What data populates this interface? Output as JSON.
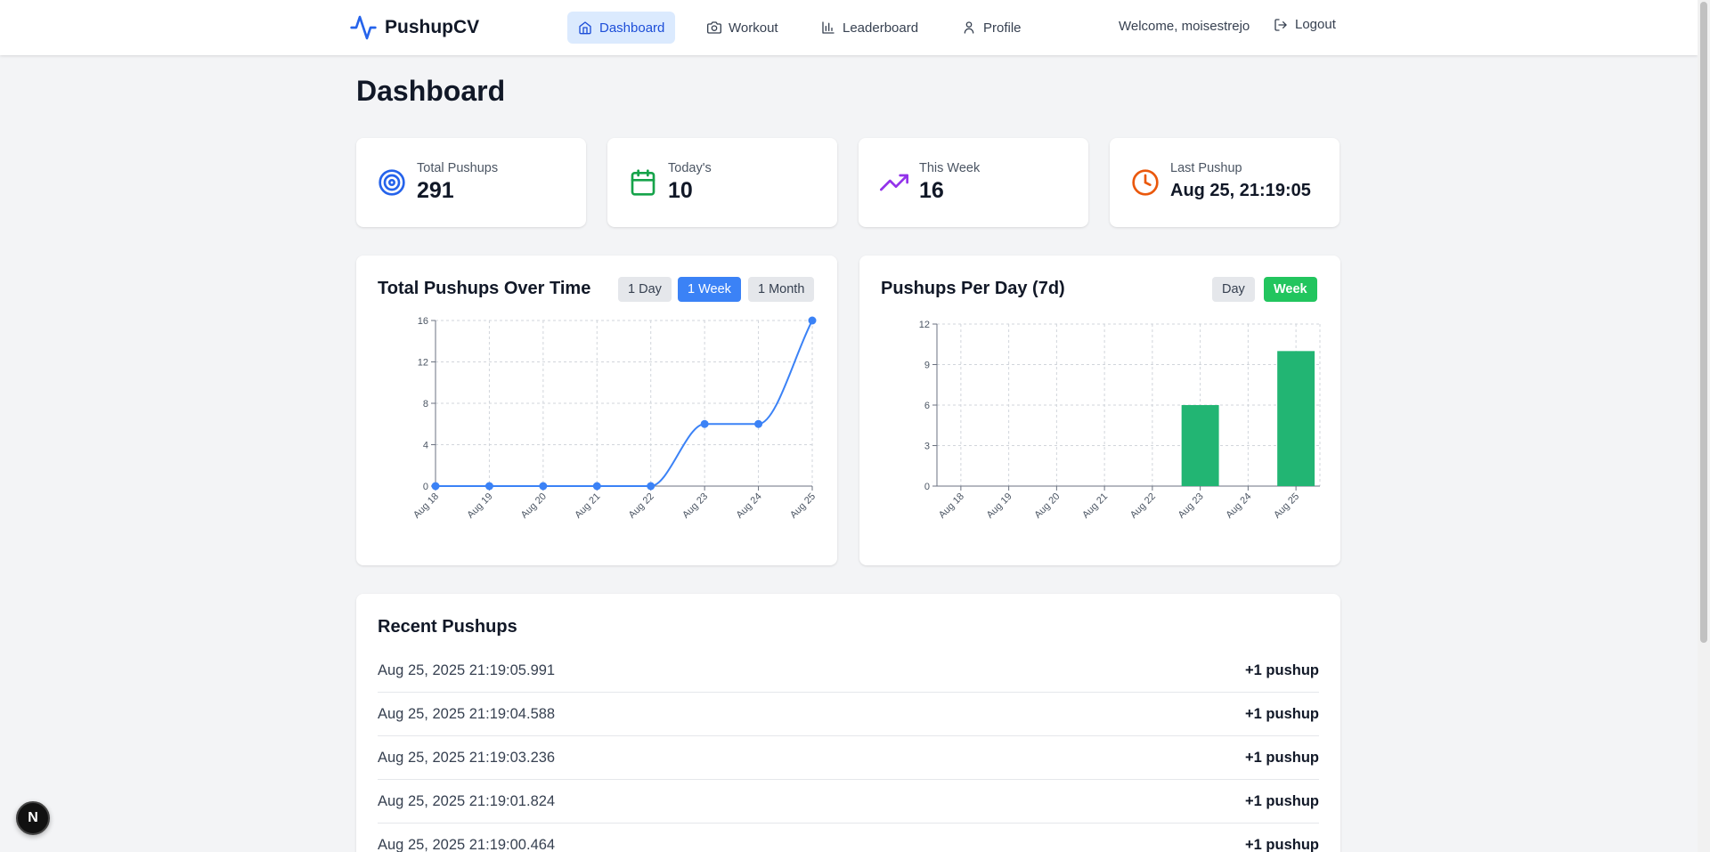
{
  "app": {
    "name": "PushupCV"
  },
  "nav": {
    "items": [
      {
        "label": "Dashboard",
        "icon": "home-icon",
        "active": true
      },
      {
        "label": "Workout",
        "icon": "camera-icon",
        "active": false
      },
      {
        "label": "Leaderboard",
        "icon": "bar-chart-icon",
        "active": false
      },
      {
        "label": "Profile",
        "icon": "user-icon",
        "active": false
      }
    ],
    "welcome": "Welcome, moisestrejo",
    "logout": "Logout"
  },
  "page": {
    "title": "Dashboard"
  },
  "stats": [
    {
      "label": "Total Pushups",
      "value": "291",
      "icon": "target-icon",
      "color": "#2563eb"
    },
    {
      "label": "Today's",
      "value": "10",
      "icon": "calendar-icon",
      "color": "#16a34a"
    },
    {
      "label": "This Week",
      "value": "16",
      "icon": "trending-up-icon",
      "color": "#9333ea"
    },
    {
      "label": "Last Pushup",
      "value": "Aug 25, 21:19:05",
      "icon": "clock-icon",
      "color": "#ea580c"
    }
  ],
  "charts": {
    "total": {
      "title": "Total Pushups Over Time",
      "ranges": [
        "1 Day",
        "1 Week",
        "1 Month"
      ],
      "active_range": "1 Week"
    },
    "per_day": {
      "title": "Pushups Per Day (7d)",
      "ranges": [
        "Day",
        "Week"
      ],
      "active_range": "Week"
    }
  },
  "chart_data": [
    {
      "type": "line",
      "title": "Total Pushups Over Time",
      "categories": [
        "Aug 18",
        "Aug 19",
        "Aug 20",
        "Aug 21",
        "Aug 22",
        "Aug 23",
        "Aug 24",
        "Aug 25"
      ],
      "values": [
        0,
        0,
        0,
        0,
        0,
        6,
        6,
        16
      ],
      "yticks": [
        0,
        4,
        8,
        12,
        16
      ],
      "ylim": [
        0,
        16
      ],
      "grid": true,
      "color": "#3b82f6"
    },
    {
      "type": "bar",
      "title": "Pushups Per Day (7d)",
      "categories": [
        "Aug 18",
        "Aug 19",
        "Aug 20",
        "Aug 21",
        "Aug 22",
        "Aug 23",
        "Aug 24",
        "Aug 25"
      ],
      "values": [
        0,
        0,
        0,
        0,
        0,
        6,
        0,
        10
      ],
      "yticks": [
        0,
        3,
        6,
        9,
        12
      ],
      "ylim": [
        0,
        12
      ],
      "grid": true,
      "color": "#22b573"
    }
  ],
  "recent": {
    "title": "Recent Pushups",
    "items": [
      {
        "timestamp": "Aug 25, 2025 21:19:05.991",
        "delta": "+1 pushup"
      },
      {
        "timestamp": "Aug 25, 2025 21:19:04.588",
        "delta": "+1 pushup"
      },
      {
        "timestamp": "Aug 25, 2025 21:19:03.236",
        "delta": "+1 pushup"
      },
      {
        "timestamp": "Aug 25, 2025 21:19:01.824",
        "delta": "+1 pushup"
      },
      {
        "timestamp": "Aug 25, 2025 21:19:00.464",
        "delta": "+1 pushup"
      }
    ]
  },
  "dev_badge": "N"
}
